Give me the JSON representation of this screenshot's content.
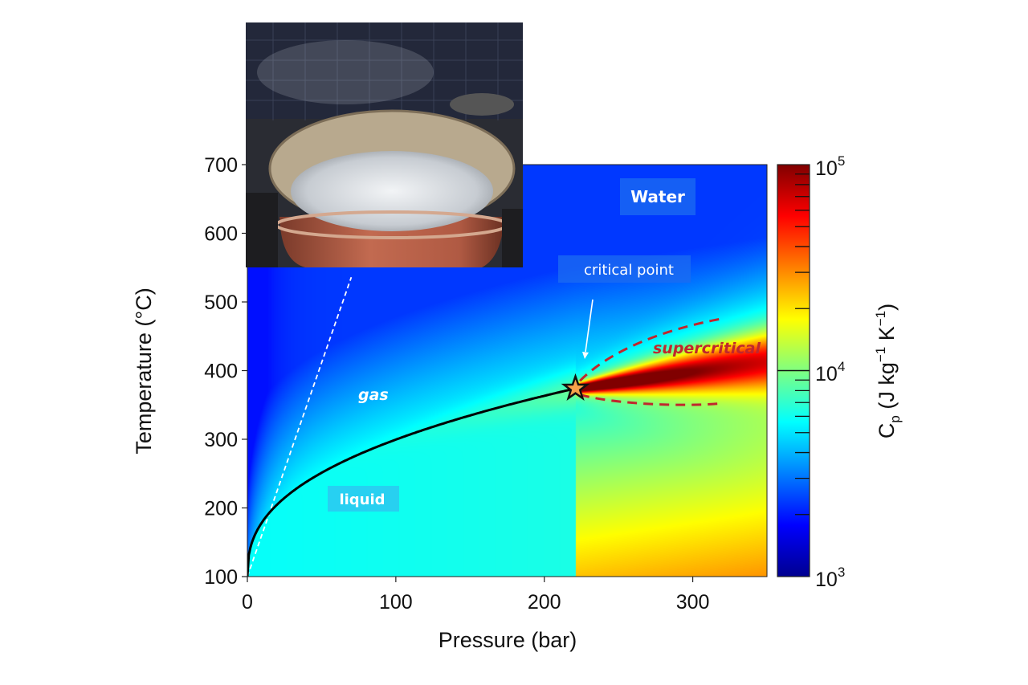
{
  "chart_data": {
    "type": "heatmap",
    "title": "Water",
    "xlabel": "Pressure (bar)",
    "ylabel": "Temperature (°C)",
    "xlim": [
      0,
      350
    ],
    "ylim": [
      100,
      700
    ],
    "xticks": [
      0,
      100,
      200,
      300
    ],
    "xtick_labels": [
      "0",
      "100",
      "200",
      "300"
    ],
    "yticks": [
      100,
      200,
      300,
      400,
      500,
      600,
      700
    ],
    "ytick_labels": [
      "100",
      "200",
      "300",
      "400",
      "500",
      "600",
      "700"
    ],
    "colorbar": {
      "label": "Cp (J kg⁻¹ K⁻¹)",
      "label_main": "C",
      "label_sub": "p",
      "label_rest": " (J kg",
      "label_sup1": "−1",
      "label_mid": " K",
      "label_sup2": "−1",
      "label_end": ")",
      "scale": "log",
      "range": [
        1000,
        100000
      ],
      "tick_base": "10",
      "tick_exponents": [
        "3",
        "4",
        "5"
      ],
      "colormap": "jet"
    },
    "boiling_curve": {
      "x": [
        0,
        5,
        20,
        50,
        100,
        150,
        200,
        221
      ],
      "y": [
        100,
        152,
        212,
        264,
        311,
        342,
        366,
        374
      ]
    },
    "critical_point": {
      "pressure": 221,
      "temperature": 374
    },
    "ideal_gas_line": {
      "x": [
        0,
        70
      ],
      "y": [
        100,
        536
      ]
    },
    "supercritical_region": {
      "upper": {
        "x": [
          224,
          240,
          270,
          318
        ],
        "y": [
          385,
          420,
          455,
          475
        ]
      },
      "lower": {
        "x": [
          224,
          245,
          290,
          318
        ],
        "y": [
          365,
          352,
          347,
          352
        ]
      }
    },
    "annotations": {
      "water": "Water",
      "critical_point": "critical point",
      "gas": "gas",
      "liquid": "liquid",
      "supercritical": "supercritical"
    },
    "colors": {
      "curve": "#000000",
      "supercritical": "#c0272d",
      "label_box": "#1c6cf0"
    }
  },
  "inset_photo": {
    "subject": "boiling-water-pot"
  }
}
